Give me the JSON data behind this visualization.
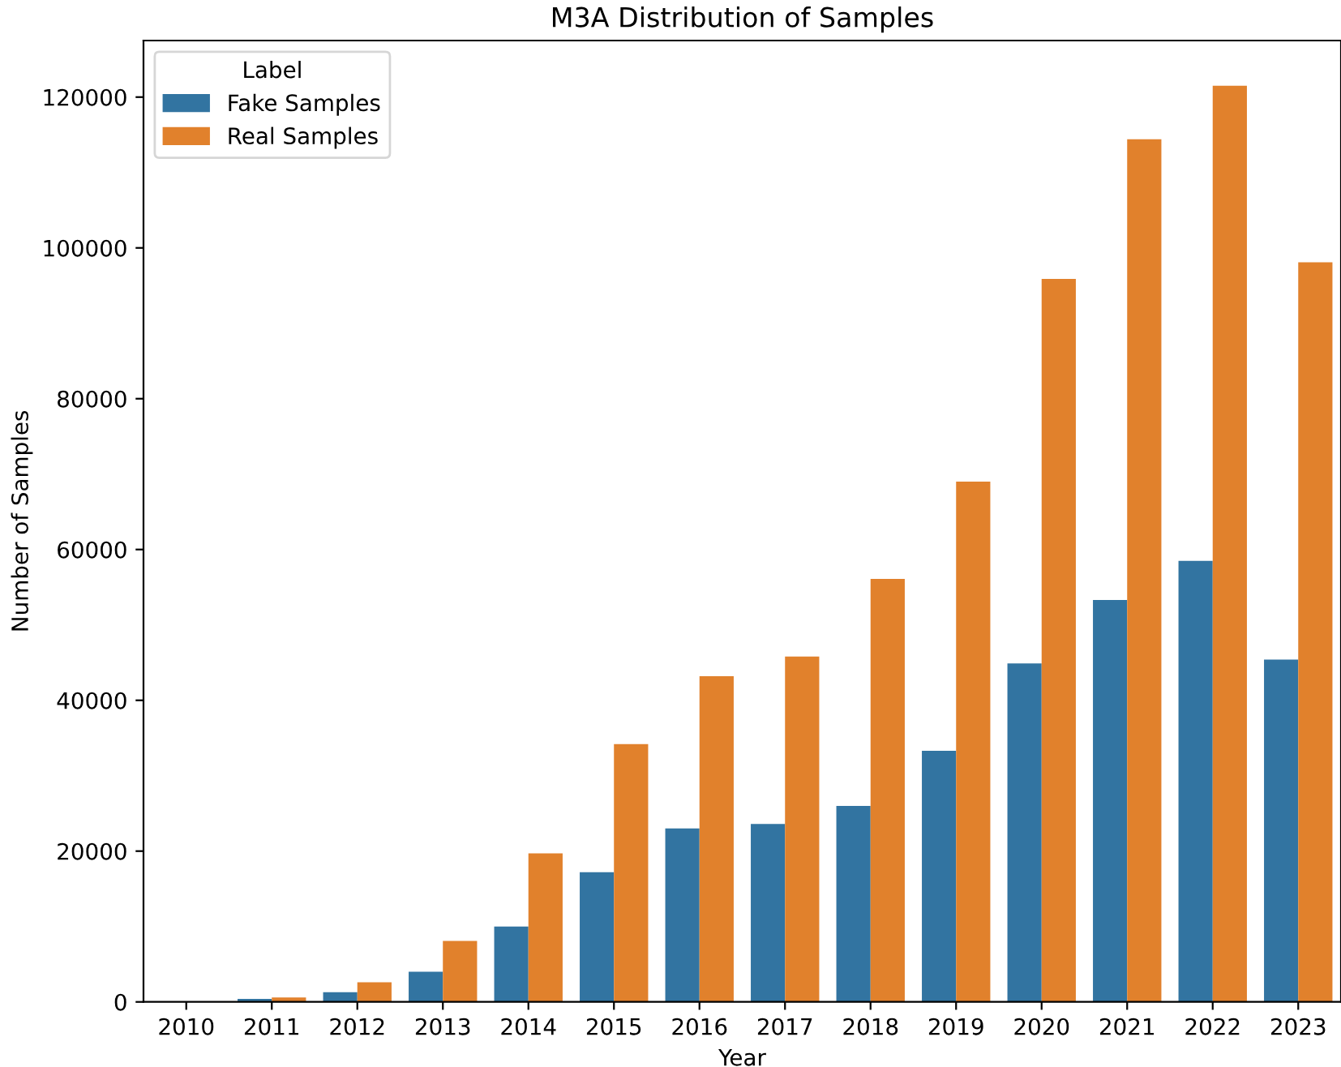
{
  "chart_data": {
    "type": "bar",
    "title": "M3A Distribution of Samples",
    "xlabel": "Year",
    "ylabel": "Number of Samples",
    "legend_title": "Label",
    "categories": [
      "2010",
      "2011",
      "2012",
      "2013",
      "2014",
      "2015",
      "2016",
      "2017",
      "2018",
      "2019",
      "2020",
      "2021",
      "2022",
      "2023"
    ],
    "series": [
      {
        "name": "Fake Samples",
        "color": "#3274a1",
        "values": [
          0,
          400,
          1300,
          4000,
          10000,
          17200,
          23000,
          23600,
          26000,
          33300,
          44900,
          53300,
          58500,
          45400
        ]
      },
      {
        "name": "Real Samples",
        "color": "#e1812c",
        "values": [
          0,
          600,
          2600,
          8100,
          19700,
          34200,
          43200,
          45800,
          56100,
          69000,
          95900,
          114400,
          121500,
          98100
        ]
      }
    ],
    "ylim": [
      0,
      127500
    ],
    "yticks": [
      0,
      20000,
      40000,
      60000,
      80000,
      100000,
      120000
    ],
    "grid": false,
    "legend": "top left"
  }
}
